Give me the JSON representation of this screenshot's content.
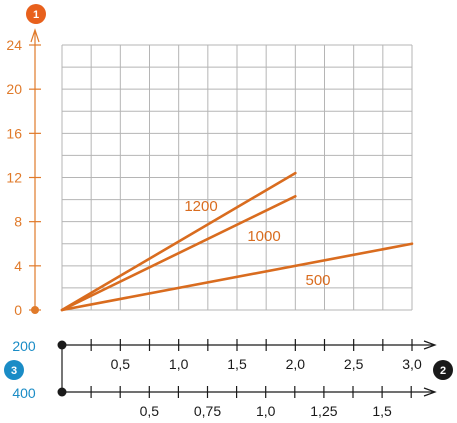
{
  "chart_data": {
    "type": "line",
    "y_axis": {
      "badge": "1",
      "ticks": [
        "0",
        "4",
        "8",
        "12",
        "16",
        "20",
        "24"
      ],
      "range": [
        0,
        24
      ]
    },
    "x_axis_top": {
      "badge": "2",
      "side_label": "200",
      "ticks": [
        "0,5",
        "1,0",
        "1,5",
        "2,0",
        "2,5",
        "3,0"
      ],
      "range": [
        0,
        3.0
      ]
    },
    "x_axis_bottom": {
      "badge": "3",
      "side_label": "400",
      "ticks": [
        "0,5",
        "0,75",
        "1,0",
        "1,25",
        "1,5"
      ]
    },
    "series": [
      {
        "name": "1200",
        "x": [
          0,
          2.0
        ],
        "y": [
          0,
          12.4
        ]
      },
      {
        "name": "1000",
        "x": [
          0,
          2.0
        ],
        "y": [
          0,
          10.3
        ]
      },
      {
        "name": "500",
        "x": [
          0,
          3.0
        ],
        "y": [
          0,
          6.0
        ]
      }
    ],
    "grid": true,
    "colors": {
      "series": "#d96c1f",
      "axis": "#e07a2a",
      "badge_blue": "#1a8cc6",
      "badge_dark": "#1a1a1a",
      "grid": "#b5b5b5"
    }
  }
}
